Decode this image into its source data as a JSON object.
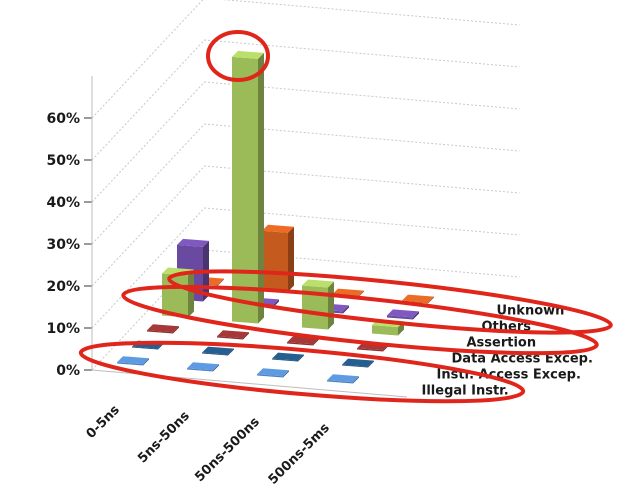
{
  "chart_data": {
    "type": "bar",
    "categories": [
      "0-5ns",
      "5ns-50ns",
      "50ns-500ns",
      "500ns-5ms"
    ],
    "series": [
      {
        "name": "Illegal Instr.",
        "values": [
          0.3,
          0.3,
          0.3,
          0.3
        ],
        "color": "#4f81bd"
      },
      {
        "name": "Instr. Access Excep.",
        "values": [
          0.2,
          0.2,
          0.2,
          0.2
        ],
        "color": "#1f4e79"
      },
      {
        "name": "Data Access Excep.",
        "values": [
          0.3,
          0.3,
          0.3,
          0.3
        ],
        "color": "#8a2f2f"
      },
      {
        "name": "Assertion",
        "values": [
          10,
          63,
          10,
          2
        ],
        "color": "#9bbb59"
      },
      {
        "name": "Others",
        "values": [
          13,
          0.5,
          0.5,
          0.5
        ],
        "color": "#6a4aa0"
      },
      {
        "name": "Unknown",
        "values": [
          0.2,
          14,
          0.2,
          0.2
        ],
        "color": "#c55a1f"
      }
    ],
    "yticks": [
      "0%",
      "10%",
      "20%",
      "30%",
      "40%",
      "50%",
      "60%"
    ],
    "ylim": [
      0,
      70
    ],
    "xlabel": "",
    "ylabel": "",
    "grid": true
  },
  "annotations": {
    "circle_color": "#e0251a"
  }
}
